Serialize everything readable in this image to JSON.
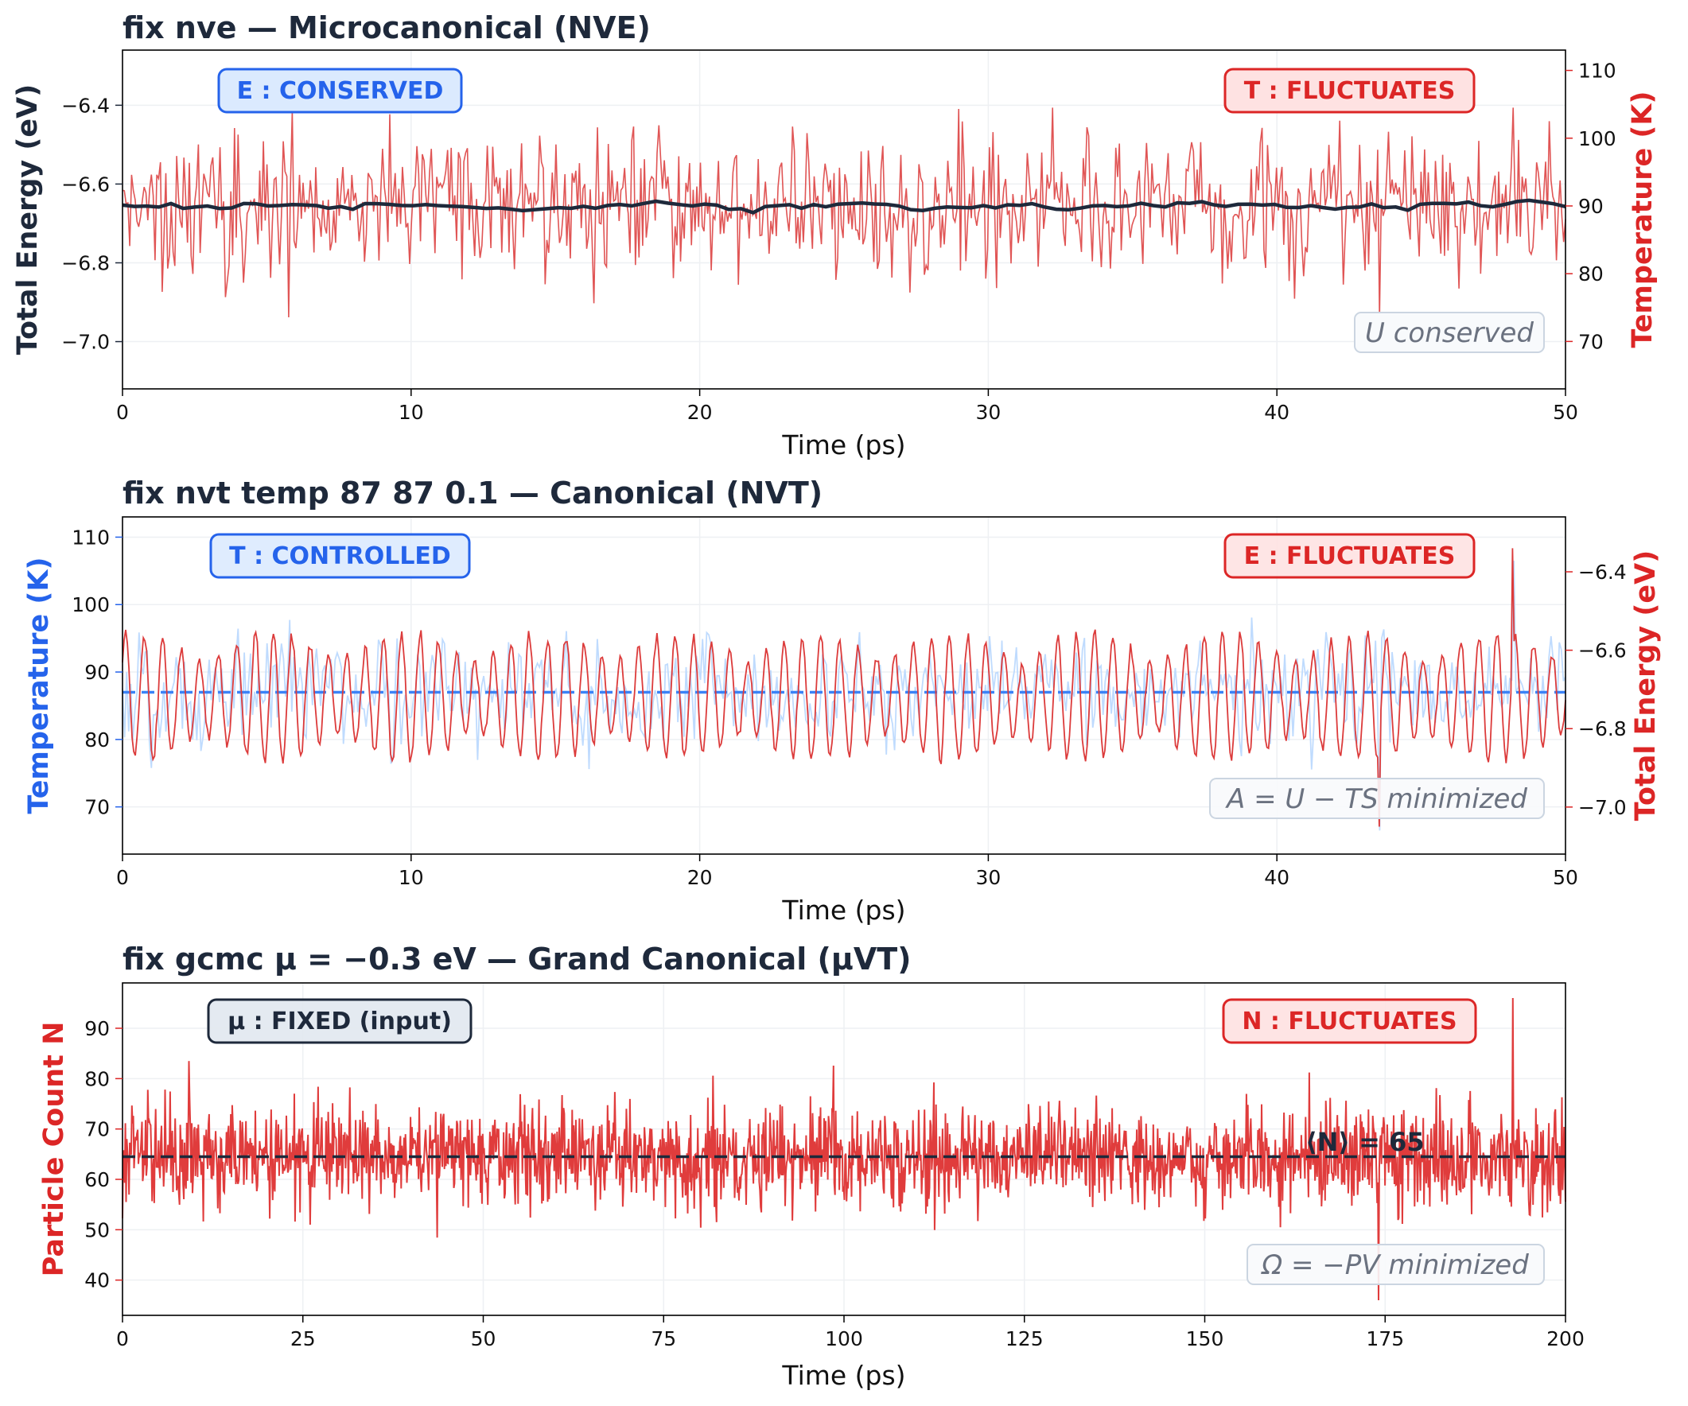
{
  "chart_data": [
    {
      "type": "line",
      "title": "fix nve  —  Microcanonical (NVE)",
      "xlabel": "Time (ps)",
      "ylabel_left": "Total Energy (eV)",
      "ylabel_right": "Temperature (K)",
      "xlim": [
        0,
        50
      ],
      "ylim_left": [
        -7.12,
        -6.26
      ],
      "ylim_right": [
        63,
        113
      ],
      "x_ticks": [
        "0",
        "10",
        "20",
        "30",
        "40",
        "50"
      ],
      "left_ticks": [
        "−7.0",
        "−6.8",
        "−6.6",
        "−6.4"
      ],
      "right_ticks": [
        "70",
        "80",
        "90",
        "100",
        "110"
      ],
      "colors": {
        "left_axis": "#1e293b",
        "right_axis": "#dc2626",
        "energy_line": "#1e293b",
        "temperature_line": "#e05555"
      },
      "grid": true,
      "series": [
        {
          "axis": "left",
          "style": "solid-thick",
          "mean": -6.655,
          "amplitude": 0.012,
          "samples": 120
        },
        {
          "axis": "right",
          "style": "thin-noisy",
          "mean": 90,
          "amplitude": 8.5,
          "samples": 800,
          "min": 73.5,
          "max": 104.5
        }
      ],
      "badges": [
        {
          "text": "E : CONSERVED",
          "position": "top-left",
          "color": "#2563eb",
          "fill": "#dbeafe"
        },
        {
          "text": "T : FLUCTUATES",
          "position": "top-right",
          "color": "#dc2626",
          "fill": "#fee2e2"
        }
      ],
      "note": "U conserved"
    },
    {
      "type": "line",
      "title": "fix nvt temp 87 87 0.1  —  Canonical (NVT)",
      "xlabel": "Time (ps)",
      "ylabel_left": "Temperature (K)",
      "ylabel_right": "Total Energy (eV)",
      "xlim": [
        0,
        50
      ],
      "ylim_left": [
        63,
        113
      ],
      "ylim_right": [
        -7.12,
        -6.26
      ],
      "x_ticks": [
        "0",
        "10",
        "20",
        "30",
        "40",
        "50"
      ],
      "left_ticks": [
        "70",
        "80",
        "90",
        "100",
        "110"
      ],
      "right_ticks": [
        "−7.0",
        "−6.8",
        "−6.6",
        "−6.4"
      ],
      "colors": {
        "left_axis": "#2563eb",
        "right_axis": "#dc2626",
        "temperature_line": "#bfdbfe",
        "target_line": "#3b82f6",
        "energy_line": "#dc3b3b"
      },
      "grid": true,
      "target_temperature": 87,
      "series": [
        {
          "axis": "left",
          "style": "thin-light",
          "mean": 87,
          "amplitude": 8,
          "samples": 700,
          "min": 66.5,
          "max": 106.5
        },
        {
          "axis": "right",
          "style": "oscillating",
          "mean": -6.72,
          "amplitude": 0.16,
          "samples": 900,
          "min": -7.05,
          "max": -6.34
        }
      ],
      "badges": [
        {
          "text": "T : CONTROLLED",
          "position": "top-left",
          "color": "#2563eb",
          "fill": "#dbeafe"
        },
        {
          "text": "E : FLUCTUATES",
          "position": "top-right",
          "color": "#dc2626",
          "fill": "#fee2e2"
        }
      ],
      "note": "A = U − TS  minimized"
    },
    {
      "type": "line",
      "title": "fix gcmc  μ = −0.3 eV  —  Grand Canonical (μVT)",
      "xlabel": "Time (ps)",
      "ylabel_left": "Particle Count N",
      "xlim": [
        0,
        200
      ],
      "ylim_left": [
        33,
        99
      ],
      "x_ticks": [
        "0",
        "25",
        "50",
        "75",
        "100",
        "125",
        "150",
        "175",
        "200"
      ],
      "left_ticks": [
        "40",
        "50",
        "60",
        "70",
        "80",
        "90"
      ],
      "colors": {
        "left_axis": "#dc2626",
        "count_line": "#e03c3c",
        "mean_line": "#1e293b"
      },
      "grid": true,
      "mean_N": 64.5,
      "mean_label": "⟨N⟩ = 65",
      "series": [
        {
          "axis": "left",
          "style": "dense-noisy",
          "mean": 64.5,
          "amplitude": 8,
          "samples": 2000,
          "min": 36,
          "max": 96
        }
      ],
      "badges": [
        {
          "text": "μ : FIXED (input)",
          "position": "top-left",
          "color": "#1e293b",
          "fill": "#e2e8f0"
        },
        {
          "text": "N : FLUCTUATES",
          "position": "top-right",
          "color": "#dc2626",
          "fill": "#fee2e2"
        }
      ],
      "note": "Ω = −PV  minimized"
    }
  ]
}
